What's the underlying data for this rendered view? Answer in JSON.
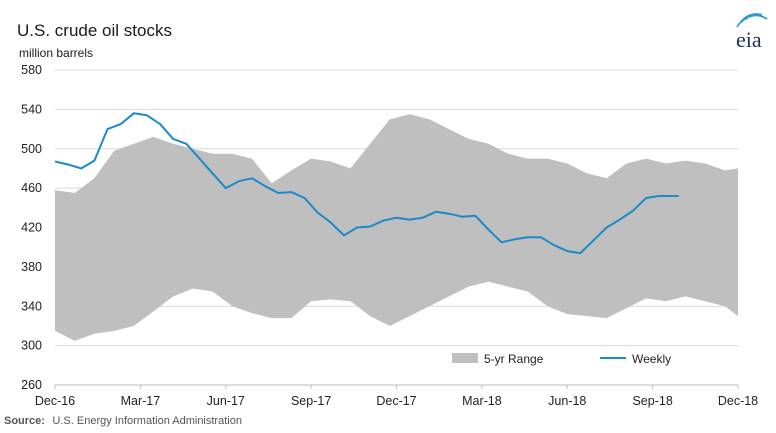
{
  "chart_data": {
    "type": "area",
    "title": "U.S. crude oil stocks",
    "ylabel": "million barrels",
    "ylim": [
      260,
      580
    ],
    "yticks": [
      260,
      300,
      340,
      380,
      420,
      460,
      500,
      540,
      580
    ],
    "x_tick_labels": [
      "Dec-16",
      "Mar-17",
      "Jun-17",
      "Sep-17",
      "Dec-17",
      "Mar-18",
      "Jun-18",
      "Sep-18",
      "Dec-18"
    ],
    "x_index_range": [
      0,
      104
    ],
    "grid": true,
    "legend": "bottom-right",
    "range_series": {
      "name": "5-yr Range",
      "color": "#bfbfbf",
      "x": [
        0,
        3,
        6,
        9,
        12,
        15,
        18,
        21,
        24,
        27,
        30,
        33,
        36,
        39,
        42,
        45,
        48,
        51,
        54,
        57,
        60,
        63,
        66,
        69,
        72,
        75,
        78,
        81,
        84,
        87,
        90,
        93,
        96,
        99,
        102,
        104
      ],
      "upper": [
        458,
        455,
        470,
        498,
        505,
        512,
        505,
        500,
        495,
        495,
        490,
        465,
        478,
        490,
        487,
        480,
        505,
        530,
        535,
        530,
        520,
        510,
        505,
        495,
        490,
        490,
        485,
        475,
        470,
        485,
        490,
        485,
        488,
        485,
        478,
        480
      ],
      "lower": [
        315,
        305,
        312,
        315,
        320,
        335,
        350,
        358,
        355,
        340,
        333,
        328,
        328,
        345,
        347,
        345,
        330,
        320,
        330,
        340,
        350,
        360,
        365,
        360,
        355,
        340,
        332,
        330,
        328,
        338,
        348,
        345,
        350,
        345,
        340,
        330
      ]
    },
    "series": [
      {
        "name": "Weekly",
        "color": "#1b8ac8",
        "x": [
          0,
          2,
          4,
          6,
          8,
          10,
          12,
          14,
          16,
          18,
          20,
          22,
          24,
          26,
          28,
          30,
          32,
          34,
          36,
          38,
          40,
          42,
          44,
          46,
          48,
          50,
          52,
          54,
          56,
          58,
          60,
          62,
          64,
          66,
          68,
          70,
          72,
          74,
          76,
          78,
          80,
          82,
          84,
          86,
          88,
          90,
          92,
          94,
          95
        ],
        "values": [
          487,
          484,
          480,
          488,
          520,
          525,
          536,
          534,
          525,
          510,
          505,
          490,
          475,
          460,
          467,
          470,
          462,
          455,
          456,
          450,
          435,
          425,
          412,
          420,
          421,
          427,
          430,
          428,
          430,
          436,
          434,
          431,
          432,
          418,
          405,
          408,
          410,
          410,
          402,
          396,
          394,
          407,
          420,
          428,
          437,
          450,
          452,
          452,
          452
        ]
      }
    ]
  },
  "legend_items": {
    "range_label": "5-yr Range",
    "weekly_label": "Weekly"
  },
  "source": {
    "label": "Source:",
    "text": "U.S. Energy Information Administration"
  },
  "logo": {
    "text": "eia"
  },
  "colors": {
    "range": "#bfbfbf",
    "weekly": "#1b8ac8",
    "logo_text": "#1f2f56",
    "logo_arcs": "#2a9bd3"
  }
}
